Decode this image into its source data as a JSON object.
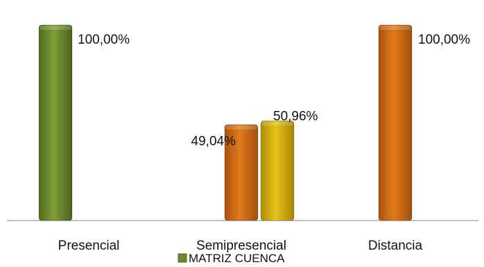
{
  "chart_data": {
    "type": "bar",
    "categories": [
      "Presencial",
      "Semipresencial",
      "Distancia"
    ],
    "bars": [
      {
        "category": "Presencial",
        "value": 100.0,
        "label": "100,00%",
        "color": "#6b8a2e"
      },
      {
        "category": "Semipresencial",
        "value": 49.04,
        "label": "49,04%",
        "color": "#cf6a12"
      },
      {
        "category": "Semipresencial",
        "value": 50.96,
        "label": "50,96%",
        "color": "#d9b10c"
      },
      {
        "category": "Distancia",
        "value": 100.0,
        "label": "100,00%",
        "color": "#cf6a12"
      }
    ],
    "ylim": [
      0,
      100
    ],
    "unit": "%",
    "grid": false,
    "title": "",
    "xlabel": "",
    "ylabel": "",
    "legend": {
      "position": "bottom",
      "entries": [
        {
          "label": "MATRIZ CUENCA",
          "color": "#6b8a2e"
        }
      ]
    }
  }
}
